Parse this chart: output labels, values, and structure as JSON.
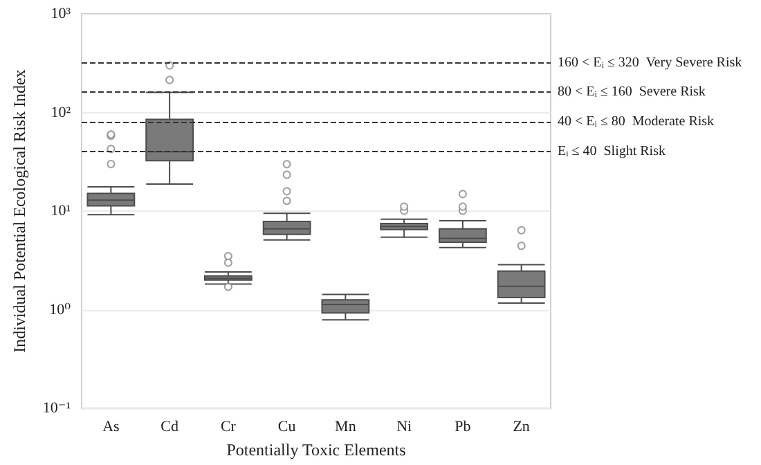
{
  "chart_data": {
    "type": "box",
    "xlabel": "Potentially Toxic Elements",
    "ylabel": "Individual Potential Ecological Risk Index",
    "categories": [
      "As",
      "Cd",
      "Cr",
      "Cu",
      "Mn",
      "Ni",
      "Pb",
      "Zn"
    ],
    "series": [
      {
        "color": "#7a7a7a",
        "boxes": [
          {
            "low": 9.2,
            "q1": 11.3,
            "median": 12.9,
            "q3": 15.1,
            "high": 17.6,
            "outliers": [
              30,
              42.7,
              58,
              60
            ]
          },
          {
            "low": 18.8,
            "q1": 32.5,
            "median": 40,
            "q3": 85,
            "high": 160,
            "outliers": [
              214,
              300
            ]
          },
          {
            "low": 1.82,
            "q1": 2.0,
            "median": 2.08,
            "q3": 2.2,
            "high": 2.42,
            "outliers": [
              1.71,
              3.0,
              3.5
            ]
          },
          {
            "low": 5.1,
            "q1": 5.8,
            "median": 6.6,
            "q3": 7.85,
            "high": 9.5,
            "outliers": [
              12.7,
              15.9,
              23.4,
              29.9
            ]
          },
          {
            "low": 0.79,
            "q1": 0.93,
            "median": 1.13,
            "q3": 1.26,
            "high": 1.43
          },
          {
            "low": 5.45,
            "q1": 6.5,
            "median": 7.0,
            "q3": 7.5,
            "high": 8.3,
            "outliers": [
              10.1,
              11.1
            ]
          },
          {
            "low": 4.27,
            "q1": 4.85,
            "median": 5.3,
            "q3": 6.6,
            "high": 8.0,
            "outliers": [
              10.1,
              11.1,
              14.9
            ]
          },
          {
            "low": 1.17,
            "q1": 1.33,
            "median": 1.73,
            "q3": 2.47,
            "high": 2.86,
            "outliers": [
              4.45,
              6.4
            ]
          }
        ]
      }
    ],
    "log": true,
    "ylim": [
      0.1,
      1000
    ],
    "yticks": [
      {
        "value": 0.1,
        "label": "10⁻¹"
      },
      {
        "value": 1,
        "label": "10⁰"
      },
      {
        "value": 10,
        "label": "10¹"
      },
      {
        "value": 100,
        "label": "10²"
      },
      {
        "value": 1000,
        "label": "10³"
      }
    ],
    "grid": "y",
    "marker": "circle",
    "ref_lines": [
      {
        "axis": "y",
        "value": 320,
        "label": "160 < Eᵢ ≤ 320  Very Severe Risk",
        "color": "#333333",
        "line_style": "dashed"
      },
      {
        "axis": "y",
        "value": 160,
        "label": "80 < Eᵢ ≤ 160  Severe Risk",
        "color": "#333333",
        "line_style": "dashed"
      },
      {
        "axis": "y",
        "value": 80,
        "label": "40 < Eᵢ ≤ 80  Moderate Risk",
        "color": "#333333",
        "line_style": "dashed"
      },
      {
        "axis": "y",
        "value": 40,
        "label": "Eᵢ ≤ 40  Slight Risk",
        "color": "#333333",
        "line_style": "dashed"
      }
    ]
  }
}
